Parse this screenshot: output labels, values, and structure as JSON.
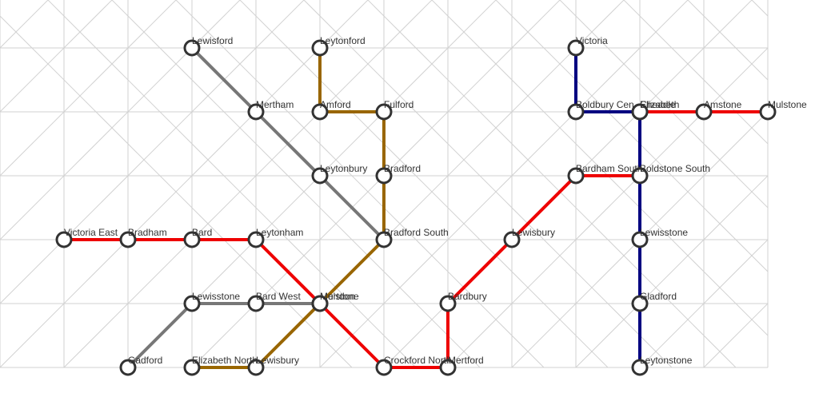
{
  "diagram": {
    "type": "transit-map",
    "colors": {
      "red": "#ee0000",
      "gray": "#777777",
      "brown": "#996600",
      "navy": "#000080",
      "station_stroke": "#333333",
      "grid": "#d2d2d2"
    },
    "stations": [
      {
        "id": "lewisford",
        "name": "Lewisford"
      },
      {
        "id": "leytonford",
        "name": "Leytonford"
      },
      {
        "id": "victoria",
        "name": "Victoria"
      },
      {
        "id": "mertham",
        "name": "Mertham"
      },
      {
        "id": "amford",
        "name": "Amford"
      },
      {
        "id": "fulford",
        "name": "Fulford"
      },
      {
        "id": "boldbury-cen",
        "name": "Boldbury Cen"
      },
      {
        "id": "cheadle",
        "name": "Cheadle"
      },
      {
        "id": "elizabeth",
        "name": "Elizabeth"
      },
      {
        "id": "amstone",
        "name": "Amstone"
      },
      {
        "id": "mulstone",
        "name": "Mulstone"
      },
      {
        "id": "leytonbury",
        "name": "Leytonbury"
      },
      {
        "id": "bradford",
        "name": "Bradford"
      },
      {
        "id": "bardham-south",
        "name": "Bardham South"
      },
      {
        "id": "boldstone-south",
        "name": "Boldstone South"
      },
      {
        "id": "victoria-east",
        "name": "Victoria East"
      },
      {
        "id": "bradham",
        "name": "Bradham"
      },
      {
        "id": "bard",
        "name": "Bard"
      },
      {
        "id": "leytonham",
        "name": "Leytonham"
      },
      {
        "id": "bradford-south",
        "name": "Bradford South"
      },
      {
        "id": "lewisbury",
        "name": "Lewisbury"
      },
      {
        "id": "lewisstone-e",
        "name": "Lewisstone"
      },
      {
        "id": "lewisstone-w",
        "name": "Lewisstone"
      },
      {
        "id": "bard-west",
        "name": "Bard West"
      },
      {
        "id": "mertdon",
        "name": "Mertdon"
      },
      {
        "id": "mulstone-c",
        "name": "Mulstone"
      },
      {
        "id": "bardbury",
        "name": "Bardbury"
      },
      {
        "id": "gladford",
        "name": "Gladford"
      },
      {
        "id": "gadford",
        "name": "Gadford"
      },
      {
        "id": "elizabeth-north",
        "name": "Elizabeth North"
      },
      {
        "id": "lewisbury-s",
        "name": "Lewisbury"
      },
      {
        "id": "crockford-north",
        "name": "Crockford North"
      },
      {
        "id": "mertford",
        "name": "Mertford"
      },
      {
        "id": "leytonstone",
        "name": "Leytonstone"
      }
    ],
    "lines": [
      {
        "id": "red-west",
        "color": "red",
        "stops": [
          "victoria-east",
          "bradham",
          "bard",
          "leytonham",
          "mertdon",
          "crockford-north",
          "mertford",
          "bardbury",
          "lewisbury",
          "bardham-south",
          "boldstone-south"
        ]
      },
      {
        "id": "red-east",
        "color": "red",
        "stops": [
          "cheadle",
          "amstone",
          "mulstone"
        ]
      },
      {
        "id": "gray",
        "color": "gray",
        "stops": [
          "lewisford",
          "mertham",
          "leytonbury",
          "bradford-south"
        ]
      },
      {
        "id": "gray-west",
        "color": "gray",
        "stops": [
          "gadford",
          "lewisstone-w",
          "bard-west",
          "mertdon"
        ]
      },
      {
        "id": "brown",
        "color": "brown",
        "stops": [
          "leytonford",
          "amford",
          "fulford",
          "bradford",
          "bradford-south",
          "mertdon",
          "lewisbury-s",
          "elizabeth-north"
        ]
      },
      {
        "id": "navy",
        "color": "navy",
        "stops": [
          "victoria",
          "boldbury-cen",
          "cheadle",
          "boldstone-south",
          "lewisstone-e",
          "gladford",
          "leytonstone"
        ]
      }
    ]
  }
}
